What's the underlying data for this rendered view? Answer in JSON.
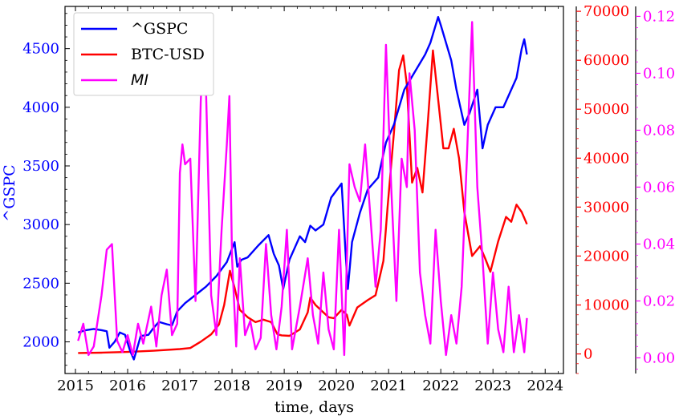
{
  "chart_data": {
    "type": "line",
    "title": "",
    "xlabel": "time, days",
    "x_ticks": [
      "2015",
      "2016",
      "2017",
      "2018",
      "2019",
      "2020",
      "2021",
      "2022",
      "2023",
      "2024"
    ],
    "xlim": [
      2014.8,
      2024.35
    ],
    "axes": [
      {
        "id": "left",
        "label": "^GSPC",
        "color": "#0000ff",
        "ylim": [
          1730,
          4860
        ],
        "ticks": [
          "2000",
          "2500",
          "3000",
          "3500",
          "4000",
          "4500"
        ]
      },
      {
        "id": "right1",
        "label": "",
        "color": "#ff0000",
        "ylim": [
          -4000,
          71000
        ],
        "ticks": [
          "0",
          "10000",
          "20000",
          "30000",
          "40000",
          "50000",
          "60000",
          "70000"
        ]
      },
      {
        "id": "right2",
        "label": "",
        "color": "#ff00ff",
        "ylim": [
          -0.0055,
          0.1235
        ],
        "ticks": [
          "0.00",
          "0.02",
          "0.04",
          "0.06",
          "0.08",
          "0.10",
          "0.12"
        ]
      }
    ],
    "legend_position": "top-left",
    "series": [
      {
        "name": "^GSPC",
        "axis": "left",
        "color": "#0000ff",
        "x": [
          2015.05,
          2015.2,
          2015.35,
          2015.5,
          2015.6,
          2015.65,
          2015.75,
          2015.85,
          2015.95,
          2016.05,
          2016.12,
          2016.25,
          2016.4,
          2016.5,
          2016.6,
          2016.75,
          2016.85,
          2016.95,
          2017.1,
          2017.3,
          2017.5,
          2017.7,
          2017.9,
          2018.05,
          2018.1,
          2018.18,
          2018.3,
          2018.5,
          2018.7,
          2018.8,
          2018.9,
          2018.98,
          2019.1,
          2019.3,
          2019.4,
          2019.5,
          2019.6,
          2019.75,
          2019.9,
          2020.1,
          2020.12,
          2020.17,
          2020.22,
          2020.3,
          2020.45,
          2020.6,
          2020.7,
          2020.8,
          2020.95,
          2021.1,
          2021.3,
          2021.5,
          2021.7,
          2021.8,
          2021.95,
          2022.0,
          2022.2,
          2022.3,
          2022.45,
          2022.55,
          2022.7,
          2022.8,
          2022.9,
          2023.05,
          2023.2,
          2023.3,
          2023.45,
          2023.55,
          2023.6,
          2023.65
        ],
        "y": [
          2080,
          2100,
          2110,
          2100,
          2090,
          1950,
          2000,
          2080,
          2060,
          1920,
          1850,
          2050,
          2060,
          2120,
          2170,
          2150,
          2140,
          2260,
          2330,
          2400,
          2470,
          2560,
          2680,
          2850,
          2640,
          2700,
          2720,
          2820,
          2910,
          2750,
          2650,
          2450,
          2700,
          2900,
          2850,
          2990,
          2950,
          3000,
          3230,
          3350,
          3200,
          2800,
          2450,
          2850,
          3100,
          3300,
          3350,
          3400,
          3700,
          3850,
          4150,
          4300,
          4450,
          4550,
          4770,
          4700,
          4400,
          4150,
          3850,
          3950,
          4150,
          3650,
          3850,
          4000,
          4000,
          4100,
          4250,
          4500,
          4580,
          4450
        ]
      },
      {
        "name": "BTC-USD",
        "axis": "right1",
        "color": "#ff0000",
        "x": [
          2015.05,
          2015.5,
          2016.0,
          2016.5,
          2017.0,
          2017.2,
          2017.4,
          2017.6,
          2017.75,
          2017.85,
          2017.96,
          2018.05,
          2018.15,
          2018.3,
          2018.45,
          2018.6,
          2018.75,
          2018.87,
          2018.95,
          2019.1,
          2019.3,
          2019.45,
          2019.5,
          2019.6,
          2019.75,
          2019.85,
          2019.95,
          2020.1,
          2020.2,
          2020.25,
          2020.4,
          2020.6,
          2020.75,
          2020.9,
          2020.98,
          2021.1,
          2021.2,
          2021.28,
          2021.35,
          2021.45,
          2021.55,
          2021.65,
          2021.75,
          2021.85,
          2021.95,
          2022.05,
          2022.15,
          2022.25,
          2022.35,
          2022.45,
          2022.6,
          2022.75,
          2022.85,
          2022.95,
          2023.1,
          2023.25,
          2023.35,
          2023.45,
          2023.55,
          2023.65
        ],
        "y": [
          200,
          250,
          400,
          650,
          1000,
          1200,
          2500,
          4000,
          6000,
          10000,
          17000,
          13500,
          9000,
          7500,
          6500,
          7000,
          6500,
          4000,
          3800,
          3700,
          5000,
          8500,
          11500,
          10000,
          8500,
          7500,
          7300,
          9000,
          8000,
          5800,
          9500,
          11000,
          12000,
          19000,
          30000,
          45000,
          58000,
          61000,
          55000,
          35000,
          38000,
          33000,
          47000,
          62000,
          52000,
          42000,
          42000,
          46000,
          40000,
          29000,
          20000,
          22000,
          19500,
          16800,
          23000,
          28000,
          27000,
          30500,
          29000,
          26500
        ]
      },
      {
        "name": "MI",
        "axis": "right2",
        "color": "#ff00ff",
        "x": [
          2015.05,
          2015.15,
          2015.25,
          2015.35,
          2015.5,
          2015.6,
          2015.7,
          2015.8,
          2015.9,
          2016.0,
          2016.1,
          2016.2,
          2016.3,
          2016.45,
          2016.55,
          2016.65,
          2016.75,
          2016.85,
          2016.95,
          2017.0,
          2017.05,
          2017.1,
          2017.2,
          2017.3,
          2017.4,
          2017.45,
          2017.5,
          2017.6,
          2017.7,
          2017.8,
          2017.9,
          2017.95,
          2018.0,
          2018.08,
          2018.15,
          2018.25,
          2018.35,
          2018.45,
          2018.55,
          2018.65,
          2018.75,
          2018.85,
          2018.95,
          2019.05,
          2019.15,
          2019.3,
          2019.45,
          2019.55,
          2019.65,
          2019.75,
          2019.85,
          2019.95,
          2020.05,
          2020.15,
          2020.25,
          2020.35,
          2020.45,
          2020.55,
          2020.65,
          2020.75,
          2020.85,
          2020.95,
          2021.05,
          2021.15,
          2021.25,
          2021.35,
          2021.4,
          2021.5,
          2021.6,
          2021.7,
          2021.8,
          2021.9,
          2022.0,
          2022.1,
          2022.2,
          2022.3,
          2022.4,
          2022.5,
          2022.6,
          2022.7,
          2022.8,
          2022.9,
          2023.0,
          2023.1,
          2023.2,
          2023.3,
          2023.4,
          2023.5,
          2023.6,
          2023.65
        ],
        "y": [
          0.006,
          0.012,
          0.001,
          0.004,
          0.022,
          0.038,
          0.04,
          0.006,
          0.002,
          0.008,
          0.001,
          0.012,
          0.005,
          0.018,
          0.004,
          0.022,
          0.031,
          0.008,
          0.012,
          0.065,
          0.075,
          0.068,
          0.07,
          0.02,
          0.09,
          0.11,
          0.095,
          0.022,
          0.008,
          0.045,
          0.075,
          0.092,
          0.035,
          0.004,
          0.035,
          0.008,
          0.013,
          0.003,
          0.007,
          0.04,
          0.015,
          0.003,
          0.018,
          0.045,
          0.003,
          0.018,
          0.035,
          0.015,
          0.005,
          0.03,
          0.01,
          0.003,
          0.045,
          0.001,
          0.068,
          0.06,
          0.055,
          0.075,
          0.05,
          0.025,
          0.045,
          0.11,
          0.06,
          0.02,
          0.07,
          0.06,
          0.1,
          0.08,
          0.03,
          0.015,
          0.005,
          0.045,
          0.02,
          0.001,
          0.015,
          0.005,
          0.025,
          0.07,
          0.118,
          0.06,
          0.035,
          0.005,
          0.03,
          0.01,
          0.002,
          0.025,
          0.002,
          0.015,
          0.002,
          0.014
        ]
      }
    ]
  }
}
